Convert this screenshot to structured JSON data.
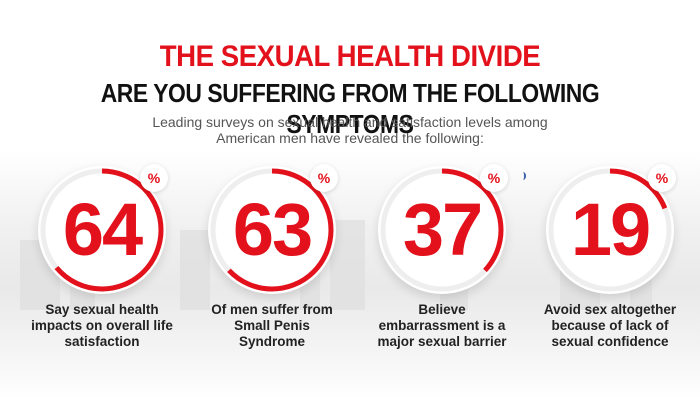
{
  "header": {
    "title": "THE SEXUAL HEALTH DIVIDE",
    "subtitle": "ARE YOU SUFFERING FROM THE FOLLOWING SYMPTOMS",
    "intro_line1": "Leading surveys on sexual health and satisfaction levels among",
    "intro_line2": "American men have revealed the following:"
  },
  "stats": [
    {
      "value": "64",
      "unit": "%",
      "progress": 0.64,
      "caption": [
        "Say sexual health",
        "impacts on overall life",
        "satisfaction"
      ]
    },
    {
      "value": "63",
      "unit": "%",
      "progress": 0.63,
      "caption": [
        "Of men suffer from",
        "Small Penis",
        "Syndrome"
      ]
    },
    {
      "value": "37",
      "unit": "%",
      "progress": 0.37,
      "caption": [
        "Believe",
        "embarrassment is a",
        "major sexual barrier"
      ]
    },
    {
      "value": "19",
      "unit": "%",
      "progress": 0.19,
      "caption": [
        "Avoid sex altogether",
        "because of lack of",
        "sexual confidence"
      ]
    }
  ],
  "colors": {
    "accent": "#e3111b",
    "text": "#222222",
    "muted": "#555555",
    "ring_track": "#eeeeee"
  }
}
